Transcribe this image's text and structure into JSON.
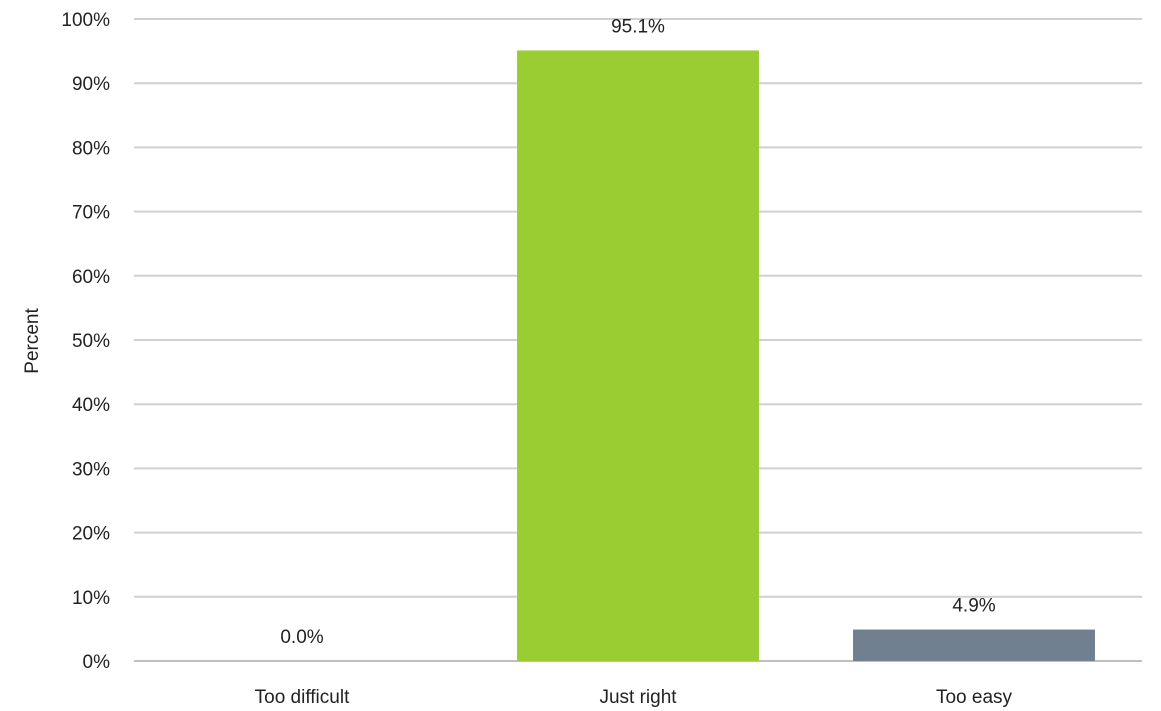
{
  "chart_data": {
    "type": "bar",
    "categories": [
      "Too difficult",
      "Just right",
      "Too easy"
    ],
    "values": [
      0.0,
      95.1,
      4.9
    ],
    "data_labels": [
      "0.0%",
      "95.1%",
      "4.9%"
    ],
    "colors": [
      "#9acd32",
      "#9acd32",
      "#708090"
    ],
    "title": "",
    "xlabel": "",
    "ylabel": "Percent",
    "ylim": [
      0,
      100
    ],
    "yticks": [
      0,
      10,
      20,
      30,
      40,
      50,
      60,
      70,
      80,
      90,
      100
    ],
    "ytick_labels": [
      "0%",
      "10%",
      "20%",
      "30%",
      "40%",
      "50%",
      "60%",
      "70%",
      "80%",
      "90%",
      "100%"
    ],
    "grid": true,
    "legend": "none"
  }
}
